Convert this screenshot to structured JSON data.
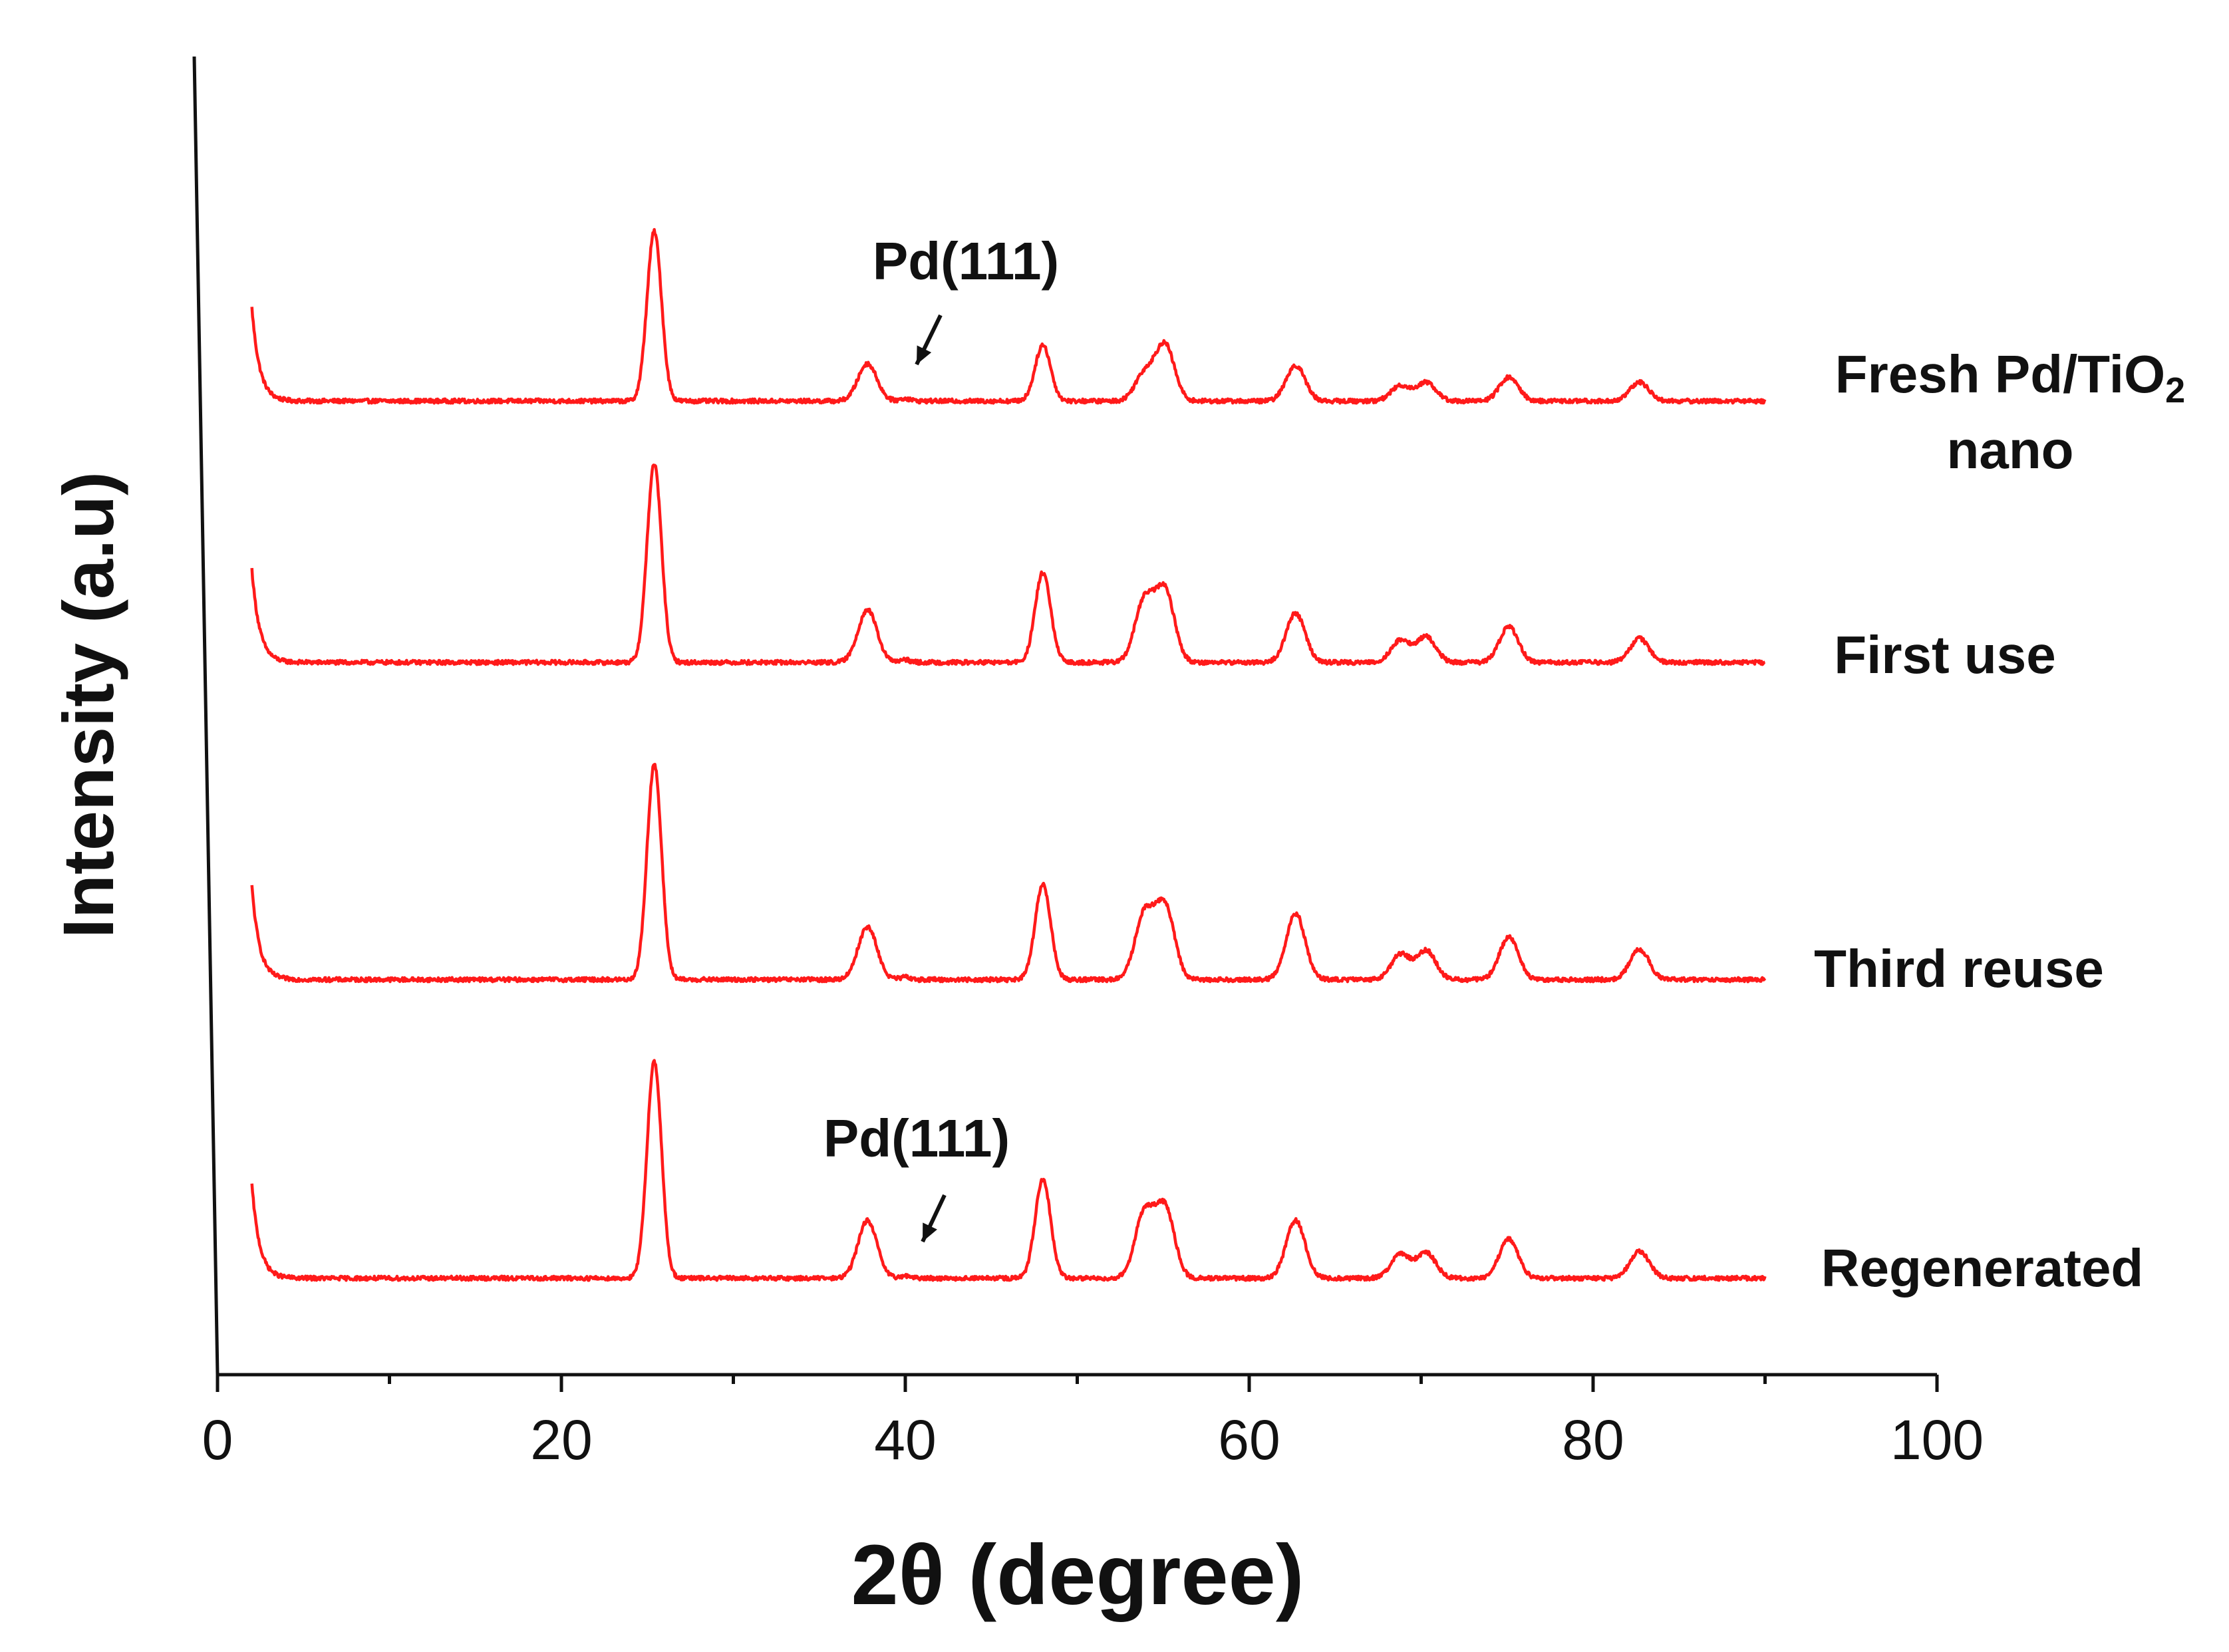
{
  "chart_data": {
    "type": "line",
    "title": "",
    "xlabel": "2θ (degree)",
    "ylabel": "Intensity (a.u)",
    "xlim": [
      0,
      100
    ],
    "x_ticks": [
      0,
      20,
      40,
      60,
      80,
      100
    ],
    "x_minor_ticks": [
      10,
      30,
      50,
      70,
      90
    ],
    "x_range_data": [
      2,
      90
    ],
    "y_ticks_shown": false,
    "grid": false,
    "line_color": "#ff1a1a",
    "axis_color": "#111111",
    "peaks_2theta": [
      25.4,
      37.8,
      48.0,
      53.9,
      55.1,
      62.7,
      68.8,
      70.3,
      75.1,
      82.7
    ],
    "series": [
      {
        "name": "Fresh Pd/TiO2 nano",
        "label_line1_main": "Fresh Pd/TiO",
        "label_line1_sub": "2",
        "label_line2": "nano",
        "offset": 3,
        "peak_heights": [
          1.0,
          0.22,
          0.33,
          0.16,
          0.33,
          0.21,
          0.09,
          0.11,
          0.14,
          0.11
        ]
      },
      {
        "name": "First use",
        "label_line1_main": "First use",
        "offset": 2,
        "peak_heights": [
          1.17,
          0.31,
          0.53,
          0.36,
          0.42,
          0.29,
          0.13,
          0.15,
          0.21,
          0.14
        ]
      },
      {
        "name": "Third reuse",
        "label_line1_main": "Third reuse",
        "offset": 1,
        "peak_heights": [
          1.27,
          0.31,
          0.56,
          0.38,
          0.43,
          0.39,
          0.15,
          0.17,
          0.25,
          0.18
        ]
      },
      {
        "name": "Regenerated",
        "label_line1_main": "Regenerated",
        "offset": 0,
        "peak_heights": [
          1.28,
          0.34,
          0.58,
          0.38,
          0.41,
          0.34,
          0.14,
          0.15,
          0.23,
          0.16
        ]
      }
    ],
    "annotations": [
      {
        "text": "Pd(111)",
        "series": "Fresh Pd/TiO2 nano",
        "x": 40.0
      },
      {
        "text": "Pd(111)",
        "series": "Regenerated",
        "x": 40.0
      }
    ]
  }
}
